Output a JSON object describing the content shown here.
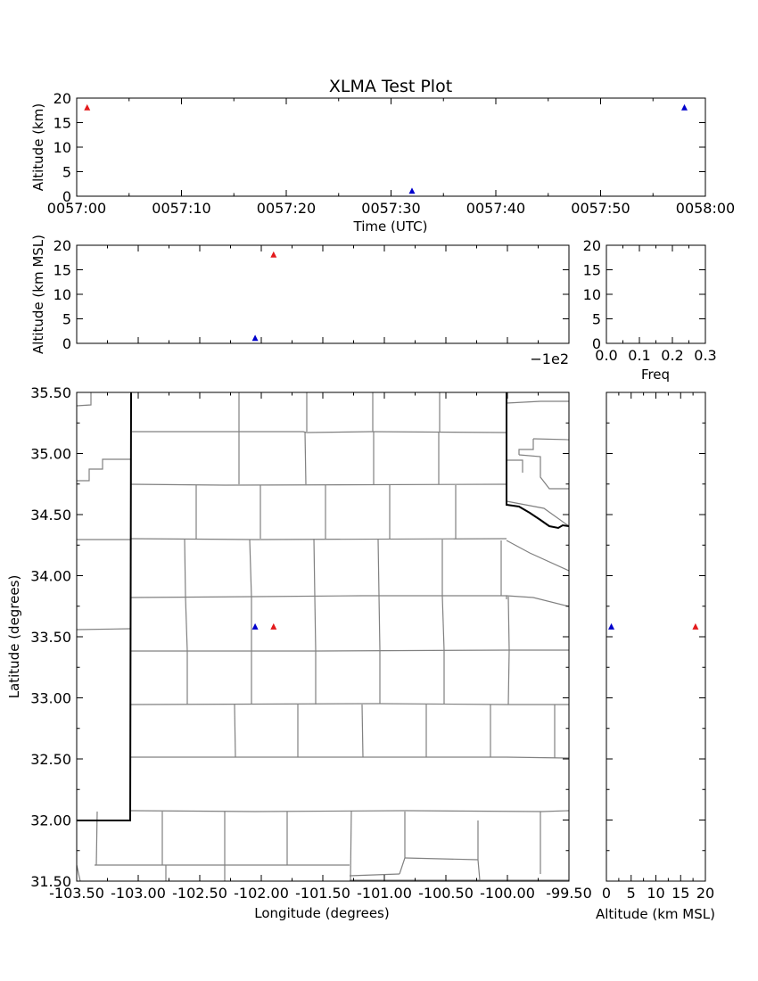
{
  "figure": {
    "title": "XLMA Test Plot"
  },
  "chart_data": [
    {
      "id": "time_altitude",
      "type": "scatter",
      "xlabel": "Time (UTC)",
      "ylabel": "Altitude (km)",
      "xlim": [
        "0057:00",
        "0058:00"
      ],
      "ylim": [
        0,
        20
      ],
      "xticks": [
        "0057:00",
        "0057:10",
        "0057:20",
        "0057:30",
        "0057:40",
        "0057:50",
        "0058:00"
      ],
      "yticks": [
        "0",
        "5",
        "10",
        "15",
        "20"
      ],
      "series": [
        {
          "color": "#e31a1c",
          "x": [
            "0057:01"
          ],
          "y": [
            18
          ]
        },
        {
          "color": "#0000cc",
          "x": [
            "0057:32",
            "0057:58"
          ],
          "y": [
            1,
            18
          ]
        }
      ]
    },
    {
      "id": "lon_altitude",
      "type": "scatter",
      "xlabel": "",
      "ylabel": "Altitude (km MSL)",
      "x_offset_label": "−1e2",
      "xlim": [
        -103.5,
        -99.5
      ],
      "ylim": [
        0,
        20
      ],
      "yticks": [
        "0",
        "5",
        "10",
        "15",
        "20"
      ],
      "series": [
        {
          "color": "#e31a1c",
          "x": [
            -101.9
          ],
          "y": [
            18
          ]
        },
        {
          "color": "#0000cc",
          "x": [
            -102.05
          ],
          "y": [
            1
          ]
        }
      ]
    },
    {
      "id": "altitude_histogram",
      "type": "bar",
      "xlabel": "Freq",
      "ylabel": "",
      "xlim": [
        0,
        0.3
      ],
      "ylim": [
        0,
        20
      ],
      "xticks": [
        "0.0",
        "0.1",
        "0.2",
        "0.3"
      ],
      "yticks": [
        "0",
        "5",
        "10",
        "15",
        "20"
      ],
      "values": []
    },
    {
      "id": "plan_view",
      "type": "scatter",
      "xlabel": "Longitude (degrees)",
      "ylabel": "Latitude (degrees)",
      "xlim": [
        -103.5,
        -99.5
      ],
      "ylim": [
        31.5,
        35.5
      ],
      "xticks": [
        "-103.50",
        "-103.00",
        "-102.50",
        "-102.00",
        "-101.50",
        "-101.00",
        "-100.50",
        "-100.00",
        "-99.50"
      ],
      "yticks": [
        "31.50",
        "32.00",
        "32.50",
        "33.00",
        "33.50",
        "34.00",
        "34.50",
        "35.00",
        "35.50"
      ],
      "series": [
        {
          "color": "#e31a1c",
          "x": [
            -101.9
          ],
          "y": [
            33.58
          ]
        },
        {
          "color": "#0000cc",
          "x": [
            -102.05
          ],
          "y": [
            33.58
          ]
        }
      ]
    },
    {
      "id": "altitude_latitude",
      "type": "scatter",
      "xlabel": "Altitude (km MSL)",
      "ylabel": "",
      "xlim": [
        0,
        20
      ],
      "ylim": [
        31.5,
        35.5
      ],
      "xticks": [
        "0",
        "5",
        "10",
        "15",
        "20"
      ],
      "series": [
        {
          "color": "#e31a1c",
          "x": [
            18
          ],
          "y": [
            33.58
          ]
        },
        {
          "color": "#0000cc",
          "x": [
            1
          ],
          "y": [
            33.58
          ]
        }
      ]
    }
  ]
}
